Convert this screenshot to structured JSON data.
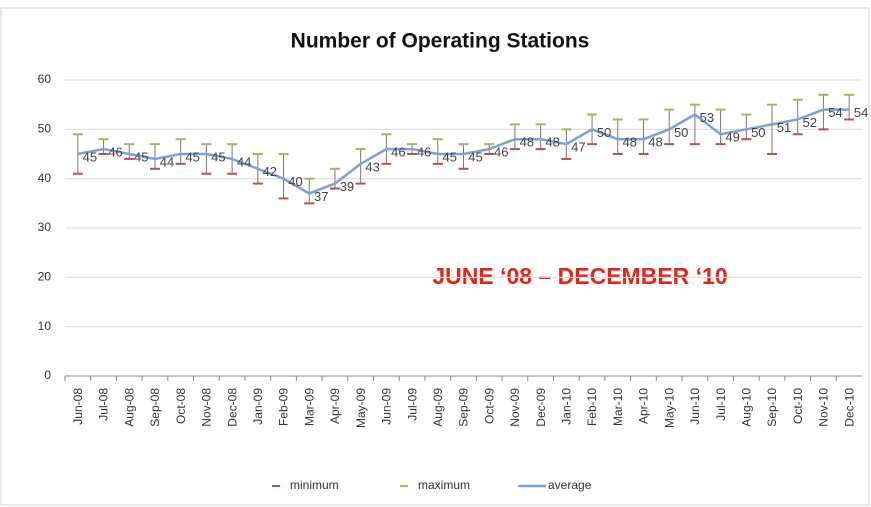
{
  "chart_data": {
    "type": "line-range",
    "title": "Number of Operating Stations",
    "annotation": "JUNE ‘08 – DECEMBER ‘10",
    "categories": [
      "Jun-08",
      "Jul-08",
      "Aug-08",
      "Sep-08",
      "Oct-08",
      "Nov-08",
      "Dec-08",
      "Jan-09",
      "Feb-09",
      "Mar-09",
      "Apr-09",
      "May-09",
      "Jun-09",
      "Jul-09",
      "Aug-09",
      "Sep-09",
      "Oct-09",
      "Nov-09",
      "Dec-09",
      "Jan-10",
      "Feb-10",
      "Mar-10",
      "Apr-10",
      "May-10",
      "Jun-10",
      "Jul-10",
      "Aug-10",
      "Sep-10",
      "Oct-10",
      "Nov-10",
      "Dec-10"
    ],
    "series": [
      {
        "name": "minimum",
        "color": "#c0504d",
        "values": [
          41,
          45,
          44,
          42,
          43,
          41,
          41,
          39,
          36,
          35,
          38,
          39,
          43,
          45,
          43,
          42,
          45,
          46,
          46,
          44,
          47,
          45,
          45,
          47,
          47,
          47,
          48,
          45,
          49,
          50,
          52
        ]
      },
      {
        "name": "maximum",
        "color": "#9bbb59",
        "values": [
          49,
          48,
          47,
          47,
          48,
          47,
          47,
          45,
          45,
          40,
          42,
          46,
          49,
          47,
          48,
          47,
          47,
          51,
          51,
          50,
          53,
          52,
          52,
          54,
          55,
          54,
          53,
          55,
          56,
          57,
          57
        ]
      },
      {
        "name": "average",
        "color": "#7f9fd6",
        "values": [
          45,
          46,
          45,
          44,
          45,
          45,
          44,
          42,
          40,
          37,
          39,
          43,
          46,
          46,
          45,
          45,
          46,
          48,
          48,
          47,
          50,
          48,
          48,
          50,
          53,
          49,
          50,
          51,
          52,
          54,
          54
        ]
      }
    ],
    "ylim": [
      0,
      60
    ],
    "yticks": [
      0,
      10,
      20,
      30,
      40,
      50,
      60
    ],
    "grid": true,
    "legend": "bottom"
  }
}
